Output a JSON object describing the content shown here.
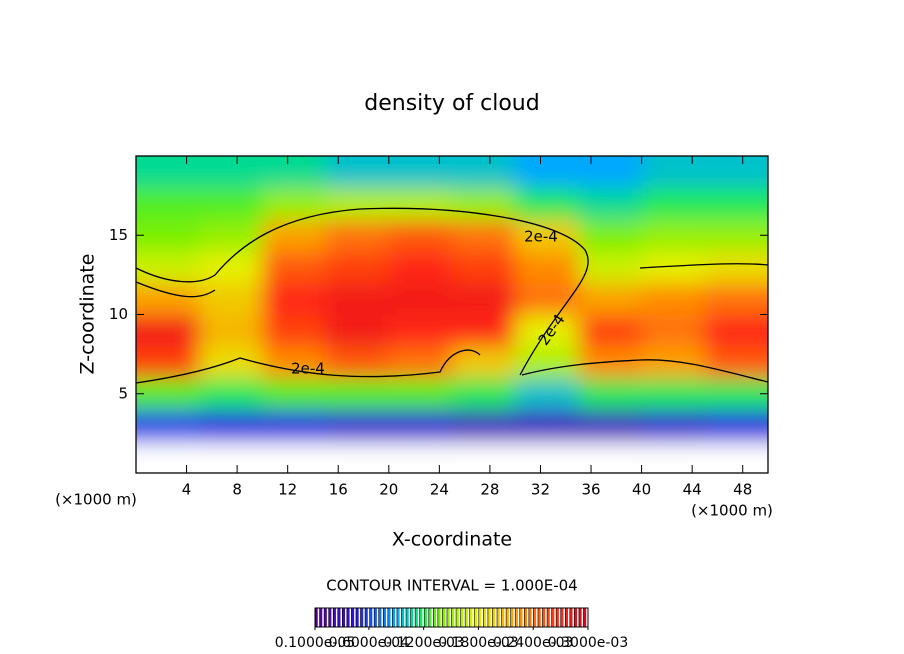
{
  "chart_data": {
    "type": "contour",
    "title": "density of cloud",
    "xlabel": "X-coordinate",
    "ylabel": "Z-coordinate",
    "unit_label": "(×1000 m)",
    "contour_interval": "CONTOUR INTERVAL = 1.000E-04",
    "xlim": [
      0,
      50
    ],
    "ylim": [
      0,
      20
    ],
    "xticks": [
      4,
      8,
      12,
      16,
      20,
      24,
      28,
      32,
      36,
      40,
      44,
      48
    ],
    "yticks": [
      5,
      10,
      15
    ],
    "x": [
      2.5,
      7.5,
      12.5,
      17.5,
      22.5,
      27.5,
      32.5,
      37.5,
      42.5,
      47.5
    ],
    "y": [
      1,
      3,
      5,
      7,
      9,
      11,
      13,
      15,
      17,
      19
    ],
    "z": [
      [
        null,
        null,
        null,
        null,
        null,
        null,
        null,
        null,
        null,
        null
      ],
      [
        6e-05,
        5e-05,
        5e-05,
        4e-05,
        4e-05,
        3e-05,
        3e-05,
        3e-05,
        4e-05,
        5e-05
      ],
      [
        0.00013,
        0.00012,
        0.00013,
        0.00013,
        0.00013,
        0.00012,
        0.0001,
        0.00012,
        0.00012,
        0.00012
      ],
      [
        0.00026,
        0.00019,
        0.00023,
        0.00025,
        0.00024,
        0.0002,
        0.00016,
        0.00023,
        0.00022,
        0.00025
      ],
      [
        0.00028,
        0.00021,
        0.00026,
        0.00028,
        0.00027,
        0.00027,
        0.00018,
        0.00026,
        0.00024,
        0.00027
      ],
      [
        0.00022,
        0.0002,
        0.00027,
        0.00028,
        0.00028,
        0.00028,
        0.00024,
        0.00022,
        0.00023,
        0.00024
      ],
      [
        0.00017,
        0.00018,
        0.00025,
        0.00026,
        0.00027,
        0.00026,
        0.00023,
        0.00017,
        0.00018,
        0.00019
      ],
      [
        0.00014,
        0.00015,
        0.00022,
        0.00024,
        0.00025,
        0.00024,
        0.0002,
        0.00014,
        0.00015,
        0.00015
      ],
      [
        0.00013,
        0.00013,
        0.00015,
        0.00016,
        0.00016,
        0.00015,
        0.00012,
        0.00011,
        0.00012,
        0.00012
      ],
      [
        0.00011,
        0.00011,
        0.00011,
        0.0001,
        0.0001,
        0.0001,
        9e-05,
        9e-05,
        0.0001,
        0.0001
      ]
    ],
    "contour_levels": [
      {
        "value": 0.0002,
        "label": "2e-4"
      }
    ],
    "colorbar_ticks": [
      {
        "value": 1e-06,
        "label": "0.1000e-05"
      },
      {
        "value": 6e-05,
        "label": "0.6000e-04"
      },
      {
        "value": 0.00012,
        "label": "0.1200e-03"
      },
      {
        "value": 0.00018,
        "label": "0.1800e-03"
      },
      {
        "value": 0.00024,
        "label": "0.2400e-03"
      },
      {
        "value": 0.0003,
        "label": "0.3000e-03"
      }
    ]
  }
}
